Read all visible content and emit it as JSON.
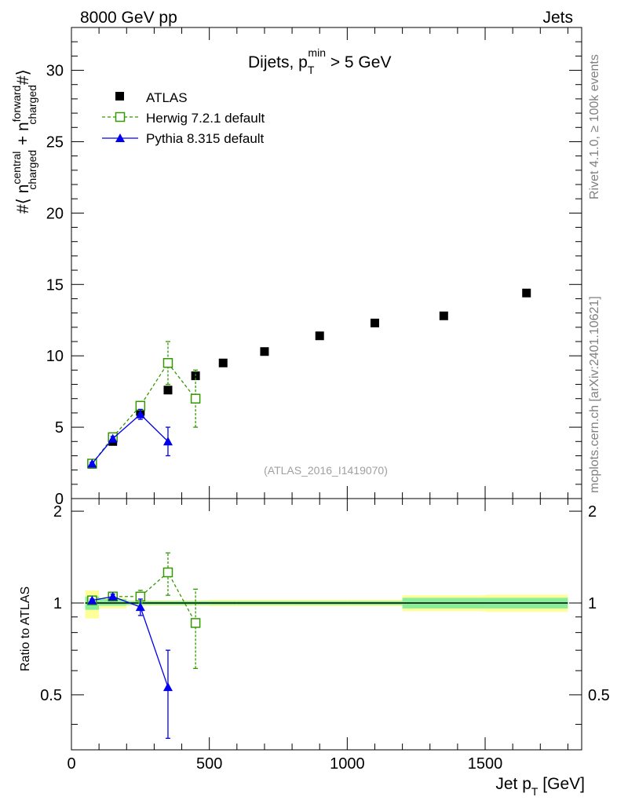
{
  "header": {
    "left": "8000 GeV pp",
    "right": "Jets"
  },
  "side": {
    "top": "Rivet 4.1.0, ≥ 100k events",
    "bottom": "mcplots.cern.ch [arXiv:2401.10621]"
  },
  "chart_data": [
    {
      "type": "scatter",
      "panel": "main",
      "title": {
        "main": "Dijets, p",
        "sub": "T",
        "sup": "min",
        "tail": " > 5 GeV"
      },
      "ylabel": "#⟨ n_charged^central + n_charged^forward #⟩",
      "xlim": [
        0,
        1850
      ],
      "ylim": [
        0,
        33
      ],
      "yticks": [
        0,
        5,
        10,
        15,
        20,
        25,
        30
      ],
      "watermark": "(ATLAS_2016_I1419070)",
      "legend": {
        "placement": "top-left",
        "entries": [
          "ATLAS",
          "Herwig 7.2.1 default",
          "Pythia 8.315 default"
        ]
      },
      "series": [
        {
          "name": "ATLAS",
          "color": "#000000",
          "marker": "square",
          "x": [
            75,
            150,
            250,
            350,
            450,
            550,
            700,
            900,
            1100,
            1350,
            1650
          ],
          "y": [
            2.4,
            4.0,
            6.1,
            7.6,
            8.6,
            9.5,
            10.3,
            11.4,
            12.3,
            12.8,
            14.4
          ]
        },
        {
          "name": "Herwig 7.2.1 default",
          "color": "#339900",
          "marker": "open-square",
          "line": "dashed",
          "x": [
            75,
            150,
            250,
            350,
            450
          ],
          "y": [
            2.45,
            4.3,
            6.5,
            9.5,
            7.0
          ],
          "err": [
            0.15,
            0.15,
            0.3,
            1.5,
            2.0
          ]
        },
        {
          "name": "Pythia 8.315 default",
          "color": "#0000ee",
          "marker": "triangle",
          "line": "solid",
          "x": [
            75,
            150,
            250,
            350
          ],
          "y": [
            2.45,
            4.2,
            5.9,
            4.0
          ],
          "err": [
            0.1,
            0.15,
            0.35,
            1.0
          ]
        }
      ]
    },
    {
      "type": "scatter",
      "panel": "ratio",
      "ylabel": "Ratio to ATLAS",
      "xlabel": "Jet p_T [GeV]",
      "xlim": [
        0,
        1850
      ],
      "ylim": [
        0.33,
        2.2
      ],
      "yticks": [
        0.5,
        1,
        2
      ],
      "xticks": [
        0,
        500,
        1000,
        1500
      ],
      "bands": [
        {
          "x": [
            50,
            100
          ],
          "inner": [
            0.95,
            1.05
          ],
          "outer": [
            0.89,
            1.1
          ]
        },
        {
          "x": [
            100,
            200
          ],
          "inner": [
            0.98,
            1.03
          ],
          "outer": [
            0.96,
            1.04
          ]
        },
        {
          "x": [
            200,
            300
          ],
          "inner": [
            0.985,
            1.015
          ],
          "outer": [
            0.98,
            1.02
          ]
        },
        {
          "x": [
            300,
            400
          ],
          "inner": [
            0.985,
            1.015
          ],
          "outer": [
            0.98,
            1.02
          ]
        },
        {
          "x": [
            400,
            500
          ],
          "inner": [
            0.985,
            1.015
          ],
          "outer": [
            0.98,
            1.02
          ]
        },
        {
          "x": [
            500,
            600
          ],
          "inner": [
            0.985,
            1.015
          ],
          "outer": [
            0.975,
            1.025
          ]
        },
        {
          "x": [
            600,
            800
          ],
          "inner": [
            0.985,
            1.015
          ],
          "outer": [
            0.975,
            1.025
          ]
        },
        {
          "x": [
            800,
            1000
          ],
          "inner": [
            0.985,
            1.015
          ],
          "outer": [
            0.975,
            1.025
          ]
        },
        {
          "x": [
            1000,
            1200
          ],
          "inner": [
            0.985,
            1.015
          ],
          "outer": [
            0.975,
            1.025
          ]
        },
        {
          "x": [
            1200,
            1500
          ],
          "inner": [
            0.96,
            1.04
          ],
          "outer": [
            0.94,
            1.06
          ]
        },
        {
          "x": [
            1500,
            1800
          ],
          "inner": [
            0.96,
            1.04
          ],
          "outer": [
            0.935,
            1.065
          ]
        }
      ],
      "series": [
        {
          "name": "Herwig 7.2.1 default",
          "color": "#339900",
          "marker": "open-square",
          "line": "dashed",
          "x": [
            75,
            150,
            250,
            350,
            450
          ],
          "y": [
            1.02,
            1.05,
            1.05,
            1.26,
            0.86
          ],
          "err": [
            0.02,
            0.02,
            0.05,
            0.2,
            0.25
          ]
        },
        {
          "name": "Pythia 8.315 default",
          "color": "#0000ee",
          "marker": "triangle",
          "line": "solid",
          "x": [
            75,
            150,
            250,
            350
          ],
          "y": [
            1.02,
            1.05,
            0.97,
            0.53
          ],
          "err": [
            0.01,
            0.02,
            0.06,
            0.17
          ]
        }
      ]
    }
  ]
}
